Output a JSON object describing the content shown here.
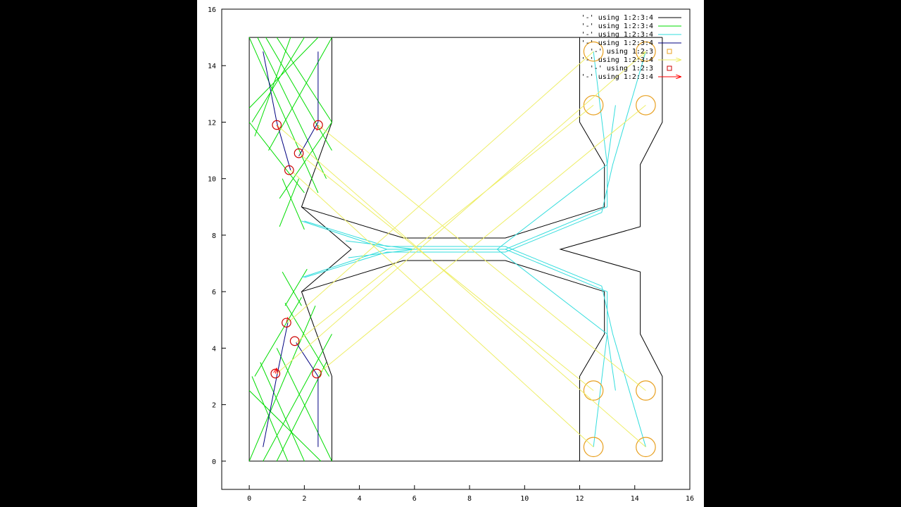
{
  "chart_data": {
    "type": "plot",
    "xlim": [
      -1,
      16
    ],
    "ylim": [
      -1,
      16
    ],
    "xticks": [
      0,
      2,
      4,
      6,
      8,
      10,
      12,
      14,
      16
    ],
    "yticks": [
      0,
      2,
      4,
      6,
      8,
      10,
      12,
      14,
      16
    ],
    "series": [
      {
        "name": "'-' using 1:2:3:4",
        "color": "#000000",
        "style": "lines",
        "x": [
          15,
          0,
          0,
          15,
          null,
          3,
          3,
          1.9,
          5.6,
          9.3,
          12.9,
          12.9,
          12,
          12,
          null,
          3,
          3,
          1.9,
          5.6,
          9.3,
          12.9,
          12.9,
          12,
          12,
          null,
          15,
          15,
          14.2,
          14.2,
          11.3,
          14.2,
          14.2,
          15,
          15,
          null,
          1.9,
          3.7,
          1.9
        ],
        "y": [
          0,
          0,
          15,
          15,
          null,
          15,
          12,
          9,
          7.9,
          7.9,
          9,
          10.5,
          12,
          15,
          null,
          0,
          3,
          6,
          7.1,
          7.1,
          6,
          4.5,
          3,
          0,
          null,
          15,
          12,
          10.5,
          8.3,
          7.5,
          6.7,
          4.5,
          3,
          0,
          null,
          9,
          7.5,
          6
        ]
      },
      {
        "name": "'-' using 1:2:3:4",
        "color": "#00dd00",
        "style": "lines",
        "x": [
          0,
          2.5,
          null,
          0.3,
          2.8,
          null,
          0.6,
          3,
          null,
          1,
          3,
          null,
          1.5,
          0.2,
          null,
          2,
          0.1,
          null,
          2.5,
          0,
          null,
          3,
          0.7,
          null,
          0,
          2.4,
          null,
          0.5,
          3,
          null,
          1,
          2.8,
          null,
          1.4,
          0.1,
          null,
          2,
          0.4,
          null,
          2.6,
          0,
          null,
          3,
          1,
          null,
          1.2,
          2,
          null,
          1.8,
          1.1,
          null,
          1.3,
          2.1,
          null,
          1.9,
          1.2,
          null,
          0,
          2,
          null,
          3,
          1.1,
          null,
          0.2,
          1.9,
          null,
          2.9,
          1.3
        ],
        "y": [
          15,
          9.5,
          null,
          15,
          10,
          null,
          15,
          11,
          null,
          15,
          12,
          null,
          15,
          11.5,
          null,
          15,
          12,
          null,
          15,
          12.5,
          null,
          15,
          11,
          null,
          0,
          5.5,
          null,
          0,
          4.5,
          null,
          0,
          3.5,
          null,
          0,
          3,
          null,
          0,
          3.5,
          null,
          0,
          2.5,
          null,
          0,
          4,
          null,
          10,
          8.2,
          null,
          10,
          8.3,
          null,
          5.5,
          6.8,
          null,
          5.5,
          6.7,
          null,
          12,
          9.5,
          null,
          12,
          9.3,
          null,
          3,
          5.8,
          null,
          3,
          5.6
        ]
      },
      {
        "name": "'-' using 1:2:3:4",
        "color": "#33dddd",
        "style": "lines",
        "x": [
          12.5,
          13,
          13,
          9.3,
          5,
          1.9,
          null,
          14.4,
          13.2,
          12.8,
          9.3,
          5,
          2,
          null,
          12.5,
          13,
          13,
          9.3,
          5,
          1.9,
          null,
          14.4,
          13.2,
          12.8,
          9.3,
          5,
          2,
          null,
          3.5,
          6,
          9,
          13,
          13.3,
          null,
          3.6,
          6,
          9,
          13,
          13.3
        ],
        "y": [
          14.5,
          10.5,
          9,
          7.5,
          7.5,
          8.5,
          null,
          14.5,
          10.5,
          8.8,
          7.4,
          7.4,
          6.5,
          null,
          0.5,
          4.5,
          6,
          7.5,
          7.5,
          6.5,
          null,
          0.5,
          4.5,
          6.2,
          7.6,
          7.6,
          8.5,
          null,
          7.8,
          7.5,
          7.5,
          4.5,
          2.5,
          null,
          7.2,
          7.5,
          7.5,
          10.5,
          12.6
        ]
      },
      {
        "name": "'-' using 1:2:3:4",
        "color": "#000080",
        "style": "lines",
        "x": [
          0.5,
          1,
          1.5,
          null,
          2.5,
          2.5,
          1.8,
          null,
          0.5,
          1,
          1.4,
          null,
          2.5,
          2.5,
          1.7
        ],
        "y": [
          14.5,
          12,
          10.3,
          null,
          14.5,
          12,
          10.8,
          null,
          0.5,
          3,
          4.9,
          null,
          0.5,
          3,
          4.2
        ]
      },
      {
        "name": "'-' using 1:2:3",
        "color": "#e8a020",
        "style": "circles",
        "x": [
          12.5,
          14.4,
          12.5,
          14.4,
          12.5,
          14.4,
          12.5,
          14.4
        ],
        "y": [
          12.6,
          12.6,
          2.5,
          2.5,
          0.5,
          0.5,
          14.5,
          14.5
        ],
        "r": [
          0.35,
          0.35,
          0.35,
          0.35,
          0.35,
          0.35,
          0.35,
          0.35
        ]
      },
      {
        "name": "'-' using 1:2:3:4",
        "color": "#eeee66",
        "style": "arrows",
        "x": [
          1.5,
          12.5,
          null,
          2.5,
          14.4,
          null,
          1,
          14.4,
          null,
          1.8,
          12.5,
          null,
          1.4,
          12.5,
          null,
          2.5,
          14.4,
          null,
          1.7,
          12.5,
          null,
          1,
          14.4
        ],
        "y": [
          10.3,
          0.5,
          null,
          11.9,
          2.5,
          null,
          11.9,
          0.5,
          null,
          10.9,
          2.5,
          null,
          4.9,
          14.5,
          null,
          3.1,
          12.6,
          null,
          4.2,
          12.6,
          null,
          3.1,
          14.5
        ]
      },
      {
        "name": "'-' using 1:2:3",
        "color": "#cc0000",
        "style": "circles",
        "x": [
          1,
          2.5,
          1.8,
          1.45,
          1.35,
          1.65,
          0.95,
          2.45
        ],
        "y": [
          11.9,
          11.9,
          10.9,
          10.3,
          4.9,
          4.25,
          3.1,
          3.1
        ],
        "r": [
          0.16,
          0.16,
          0.16,
          0.16,
          0.16,
          0.16,
          0.16,
          0.16
        ]
      },
      {
        "name": "'-' using 1:2:3:4",
        "color": "#ff0000",
        "style": "arrows",
        "x": [
          1,
          1.1,
          null,
          2.5,
          2.45,
          null,
          1.35,
          1.4,
          null,
          0.95,
          1
        ],
        "y": [
          11.9,
          11.7,
          null,
          11.9,
          11.7,
          null,
          4.9,
          5.1,
          null,
          3.1,
          3.3
        ]
      }
    ]
  }
}
